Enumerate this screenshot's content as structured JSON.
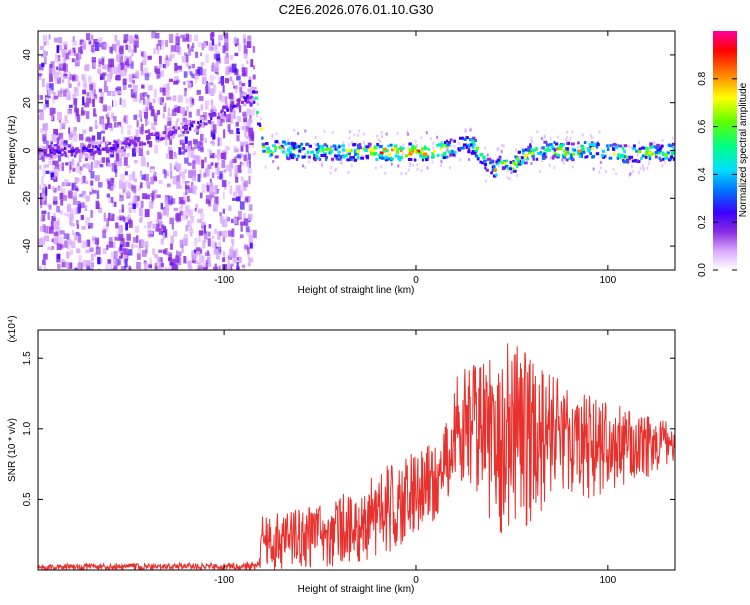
{
  "title": "C2E6.2026.076.01.10.G30",
  "chart_data": [
    {
      "type": "heatmap",
      "title": "C2E6.2026.076.01.10.G30",
      "xlabel": "Height of straight line (km)",
      "ylabel": "Frequency (Hz)",
      "xlim": [
        -197,
        135
      ],
      "ylim": [
        -50,
        50
      ],
      "x_ticks": [
        -100,
        0,
        100
      ],
      "x_tick_labels": [
        "-100",
        "0",
        "100"
      ],
      "y_ticks": [
        -40,
        -20,
        0,
        20,
        40
      ],
      "y_tick_labels": [
        "-40",
        "-20",
        "0",
        "20",
        "40"
      ],
      "colorbar": {
        "label": "Normalized spectral amplitude",
        "range": [
          0,
          1
        ],
        "ticks": [
          0.0,
          0.2,
          0.4,
          0.6,
          0.8
        ],
        "tick_labels": [
          "0.0",
          "0.2",
          "0.4",
          "0.6",
          "0.8"
        ],
        "colors": [
          "#ffffff",
          "#d9a8ff",
          "#8a2be2",
          "#3a00ff",
          "#0070ff",
          "#00e0ff",
          "#00ff80",
          "#60ff00",
          "#ffff00",
          "#ff8000",
          "#ff0000",
          "#ff00a0"
        ]
      },
      "ridge": {
        "x": [
          -197,
          -180,
          -160,
          -140,
          -120,
          -100,
          -85,
          -80,
          -60,
          -40,
          -25,
          -10,
          0,
          10,
          20,
          25,
          30,
          35,
          40,
          45,
          50,
          55,
          60,
          70,
          80,
          90,
          100,
          110,
          120,
          135
        ],
        "y": [
          0,
          0.5,
          2,
          5,
          10,
          17,
          25,
          1.5,
          0,
          0,
          0,
          0,
          0,
          0.5,
          2,
          4,
          2,
          -3,
          -8,
          -4,
          -6,
          -2,
          0,
          1,
          0,
          1,
          0,
          -1,
          0,
          0
        ]
      }
    },
    {
      "type": "line",
      "xlabel": "Height of straight line (km)",
      "ylabel": "SNR (10 * v/v)",
      "y_scale_label": "(x10⁴)",
      "xlim": [
        -197,
        135
      ],
      "ylim": [
        0,
        17000
      ],
      "x_ticks": [
        -100,
        0,
        100
      ],
      "x_tick_labels": [
        "-100",
        "0",
        "100"
      ],
      "y_ticks": [
        5000,
        10000,
        15000
      ],
      "y_tick_labels": [
        "0.5",
        "1.0",
        "1.5"
      ],
      "series": [
        {
          "name": "SNR",
          "color": "#e8302c",
          "envelope_x": [
            -197,
            -150,
            -100,
            -82,
            -80,
            -60,
            -40,
            -25,
            -10,
            0,
            10,
            18,
            20,
            30,
            40,
            45,
            50,
            55,
            60,
            70,
            80,
            90,
            100,
            110,
            120,
            135
          ],
          "envelope_min": [
            0,
            0,
            0,
            0,
            0,
            0,
            300,
            600,
            1500,
            2500,
            3500,
            5000,
            7000,
            5000,
            3000,
            2500,
            1800,
            2500,
            3500,
            4500,
            5000,
            5000,
            5500,
            6000,
            6500,
            7500
          ],
          "envelope_max": [
            400,
            500,
            500,
            600,
            3800,
            4500,
            5500,
            6500,
            8000,
            8500,
            9000,
            11000,
            14000,
            14500,
            16000,
            16500,
            17000,
            16000,
            15000,
            14000,
            13000,
            12500,
            12000,
            11500,
            11000,
            10500
          ]
        }
      ]
    }
  ]
}
